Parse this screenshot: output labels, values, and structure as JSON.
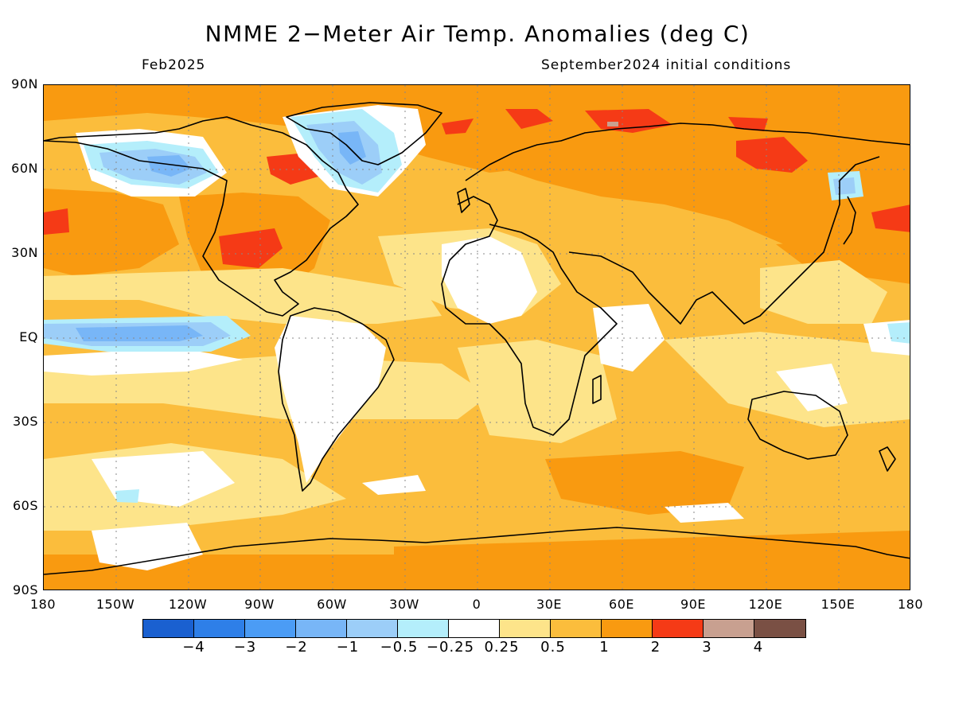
{
  "title": "NMME 2−Meter Air Temp. Anomalies (deg C)",
  "subtitle_left": "Feb2025",
  "subtitle_right": "September2024 initial conditions",
  "lat_labels": [
    "90N",
    "60N",
    "30N",
    "EQ",
    "30S",
    "60S",
    "90S"
  ],
  "lon_labels": [
    "180",
    "150W",
    "120W",
    "90W",
    "60W",
    "30W",
    "0",
    "30E",
    "60E",
    "90E",
    "120E",
    "150E",
    "180"
  ],
  "colorbar": {
    "colors": [
      "#1a60d0",
      "#2e7fe8",
      "#4b9cf5",
      "#78b6f7",
      "#9ccef8",
      "#b4eefb",
      "#ffffff",
      "#fde48a",
      "#fbbd3c",
      "#f99a10",
      "#f53a16",
      "#c8a090",
      "#7a5044"
    ],
    "labels": [
      "−4",
      "−3",
      "−2",
      "−1",
      "−0.5",
      "−0.25",
      "0.25",
      "0.5",
      "1",
      "2",
      "3",
      "4"
    ]
  }
}
